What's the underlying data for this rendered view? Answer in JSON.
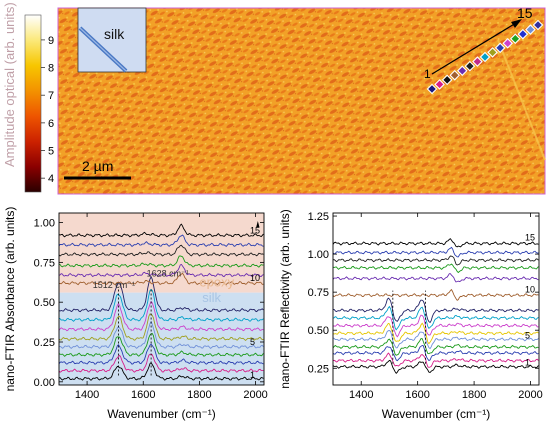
{
  "image_panel": {
    "colorbar": {
      "label": "Amplitude optical (arb. units)",
      "ticks": [
        4,
        5,
        6,
        7,
        8,
        9
      ],
      "range": [
        3.5,
        9.9
      ],
      "colors": [
        "#2a0000",
        "#8b0000",
        "#cc2200",
        "#ee5500",
        "#f39200",
        "#f7c600",
        "#fbe97a",
        "#ffffff"
      ]
    },
    "inset_label": "silk",
    "scale_bar_label": "2 µm",
    "arrow_start_label": "1",
    "arrow_end_label": "15",
    "point_colors": [
      "#1a1a80",
      "#d61e8a",
      "#111111",
      "#a06030",
      "#6a2db0",
      "#202020",
      "#c02a8a",
      "#00a0c8",
      "#a0a020",
      "#2b3fb0",
      "#cc40cc",
      "#20a020",
      "#1f30d0",
      "#7090d8",
      "#3030a0"
    ]
  },
  "chart_data": [
    {
      "type": "line",
      "ylabel": "nano-FTIR Absorbance (arb. units)",
      "xlabel": "Wavenumber (cm⁻¹)",
      "xlim": [
        1300,
        2030
      ],
      "ylim": [
        -0.02,
        1.06
      ],
      "xticks": [
        1400,
        1600,
        1800,
        2000
      ],
      "yticks": [
        0.0,
        0.25,
        0.5,
        0.75,
        1.0
      ],
      "region_labels": [
        "epoxy",
        "silk"
      ],
      "peak_labels": [
        "1512 cm⁻¹",
        "1628 cm⁻¹"
      ],
      "trace_labels": [
        "1",
        "5",
        "10",
        "15"
      ],
      "series_offsets": [
        0.02,
        0.07,
        0.12,
        0.17,
        0.22,
        0.27,
        0.33,
        0.39,
        0.45,
        0.62,
        0.67,
        0.73,
        0.8,
        0.86,
        0.92
      ],
      "series_colors": [
        "#000000",
        "#d61e8a",
        "#2b3fb0",
        "#1a9a1a",
        "#7090d8",
        "#a0a020",
        "#cc40cc",
        "#00a0c8",
        "#222266",
        "#a06030",
        "#6a2db0",
        "#1a9a1a",
        "#202020",
        "#2b3fb0",
        "#000000"
      ]
    },
    {
      "type": "line",
      "ylabel": "nano-FTIR Reflectivity (arb. units)",
      "xlabel": "Wavenumber (cm⁻¹)",
      "xlim": [
        1300,
        2030
      ],
      "ylim": [
        0.14,
        1.27
      ],
      "xticks": [
        1400,
        1600,
        1800,
        2000
      ],
      "yticks": [
        0.25,
        0.5,
        0.75,
        1.0,
        1.25
      ],
      "trace_labels": [
        "1",
        "5",
        "10",
        "15"
      ],
      "series_offsets": [
        0.26,
        0.3,
        0.35,
        0.39,
        0.44,
        0.48,
        0.53,
        0.58,
        0.63,
        0.73,
        0.84,
        0.91,
        0.96,
        1.01,
        1.07
      ],
      "series_colors": [
        "#000000",
        "#d61e8a",
        "#2b3fb0",
        "#1a9a1a",
        "#7090d8",
        "#e6c600",
        "#cc40cc",
        "#00a0c8",
        "#222266",
        "#a06030",
        "#6a2db0",
        "#1a9a1a",
        "#202020",
        "#2b3fb0",
        "#000000"
      ]
    }
  ]
}
